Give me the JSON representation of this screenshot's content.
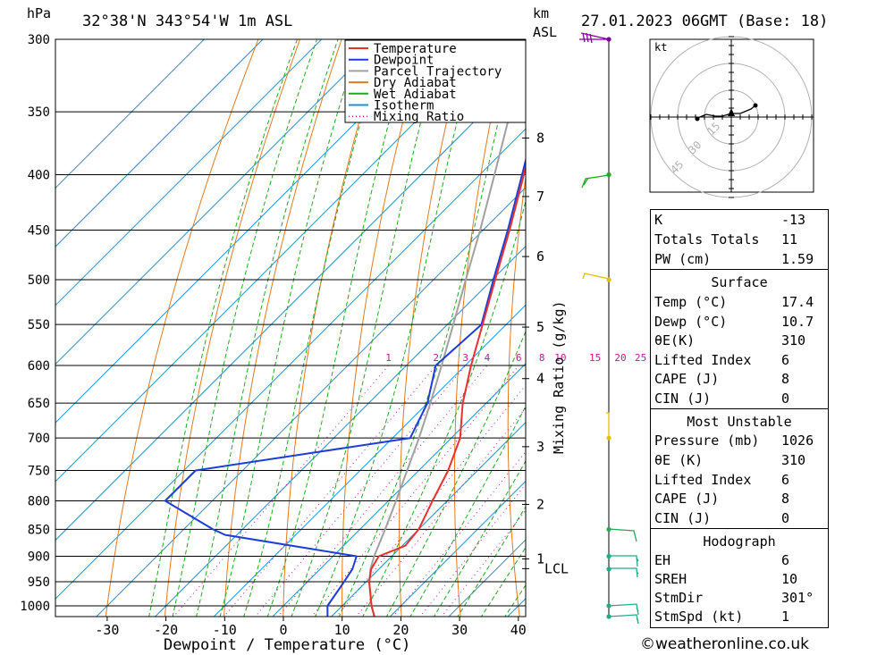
{
  "header": {
    "hpa_unit": "hPa",
    "location": "32°38'N  343°54'W  1m  ASL",
    "km_unit": "km",
    "asl_unit": "ASL",
    "datetime": "27.01.2023  06GMT  (Base: 18)"
  },
  "chart_data": {
    "type": "line",
    "title": "32°38'N  343°54'W  1m  ASL",
    "xlabel": "Dewpoint / Temperature (°C)",
    "ylabel": "hPa",
    "y2label": "Mixing Ratio (g/kg)",
    "xlim": [
      -40,
      40
    ],
    "ylim": [
      1025,
      300
    ],
    "y_scale": "log",
    "skew": "skew-T",
    "grid": true,
    "legend_position": "top-right",
    "x_ticks": [
      -30,
      -20,
      -10,
      0,
      10,
      20,
      30,
      40
    ],
    "pressure_levels": [
      300,
      350,
      400,
      450,
      500,
      550,
      600,
      650,
      700,
      750,
      800,
      850,
      900,
      950,
      1000
    ],
    "km_ticks": [
      {
        "label": "8",
        "p": 370
      },
      {
        "label": "7",
        "p": 419
      },
      {
        "label": "6",
        "p": 476
      },
      {
        "label": "5",
        "p": 553
      },
      {
        "label": "4",
        "p": 617
      },
      {
        "label": "3",
        "p": 713
      },
      {
        "label": "2",
        "p": 806
      },
      {
        "label": "1",
        "p": 905
      },
      {
        "label": "LCL",
        "p": 924
      }
    ],
    "mixing_ratio_labels": [
      "1",
      "2",
      "3",
      "4",
      "6",
      "8",
      "10",
      "15",
      "20",
      "25"
    ],
    "mixing_ratio_values": [
      1,
      2,
      3,
      4,
      6,
      8,
      10,
      15,
      20,
      25
    ],
    "series": [
      {
        "name": "Temperature",
        "color": "#e8302d",
        "points": [
          [
            1025,
            17.5
          ],
          [
            1000,
            15.0
          ],
          [
            950,
            10.5
          ],
          [
            925,
            8.7
          ],
          [
            900,
            7.8
          ],
          [
            880,
            10.5
          ],
          [
            850,
            10.0
          ],
          [
            800,
            7.5
          ],
          [
            750,
            5.0
          ],
          [
            700,
            1.5
          ],
          [
            650,
            -4.0
          ],
          [
            600,
            -9.0
          ],
          [
            550,
            -14.0
          ],
          [
            500,
            -19.5
          ],
          [
            450,
            -25.5
          ],
          [
            400,
            -32.5
          ],
          [
            350,
            -40.5
          ],
          [
            300,
            -49.5
          ]
        ]
      },
      {
        "name": "Dewpoint",
        "color": "#1c3dd8",
        "points": [
          [
            1025,
            9.5
          ],
          [
            1000,
            7.5
          ],
          [
            960,
            6.5
          ],
          [
            925,
            5.5
          ],
          [
            900,
            4.0
          ],
          [
            860,
            -22.0
          ],
          [
            850,
            -25.0
          ],
          [
            800,
            -38.0
          ],
          [
            750,
            -38.0
          ],
          [
            700,
            -7.0
          ],
          [
            650,
            -10.0
          ],
          [
            600,
            -15.0
          ],
          [
            550,
            -14.2
          ],
          [
            500,
            -19.8
          ],
          [
            450,
            -25.8
          ],
          [
            400,
            -32.8
          ],
          [
            350,
            -40.8
          ],
          [
            300,
            -50.0
          ]
        ]
      },
      {
        "name": "Parcel Trajectory",
        "color": "#a0a0a0",
        "points": [
          [
            1025,
            17.5
          ],
          [
            1000,
            15.0
          ],
          [
            950,
            10.5
          ],
          [
            924,
            8.5
          ],
          [
            900,
            7.0
          ],
          [
            850,
            4.3
          ],
          [
            800,
            1.3
          ],
          [
            750,
            -2.0
          ],
          [
            700,
            -5.5
          ],
          [
            650,
            -9.5
          ],
          [
            600,
            -14.0
          ],
          [
            550,
            -19.0
          ],
          [
            500,
            -24.5
          ],
          [
            450,
            -30.5
          ],
          [
            400,
            -37.5
          ],
          [
            350,
            -45.5
          ],
          [
            320,
            -51.0
          ]
        ]
      }
    ],
    "legend": [
      {
        "name": "Temperature",
        "color": "#e8302d",
        "style": "solid"
      },
      {
        "name": "Dewpoint",
        "color": "#1c3dd8",
        "style": "solid"
      },
      {
        "name": "Parcel Trajectory",
        "color": "#a0a0a0",
        "style": "solid"
      },
      {
        "name": "Dry Adiabat",
        "color": "#e07a1e",
        "style": "solid"
      },
      {
        "name": "Wet Adiabat",
        "color": "#1faa1f",
        "style": "solid"
      },
      {
        "name": "Isotherm",
        "color": "#1e90d8",
        "style": "solid"
      },
      {
        "name": "Mixing Ratio",
        "color": "#c0189a",
        "style": "dotted"
      }
    ],
    "wind_barbs": [
      {
        "p": 300,
        "color": "#8000a0"
      },
      {
        "p": 400,
        "color": "#22aa22"
      },
      {
        "p": 500,
        "color": "#e0c000"
      },
      {
        "p": 700,
        "color": "#e0c000"
      },
      {
        "p": 850,
        "color": "#22aa55"
      },
      {
        "p": 900,
        "color": "#22aa88"
      },
      {
        "p": 925,
        "color": "#22aa88"
      },
      {
        "p": 1000,
        "color": "#22aa88"
      },
      {
        "p": 1025,
        "color": "#22aa88"
      }
    ]
  },
  "hodograph": {
    "unit": "kt",
    "ring_labels": [
      "15",
      "30",
      "45"
    ]
  },
  "indices": [
    {
      "key": "K",
      "value": "-13"
    },
    {
      "key": "Totals Totals",
      "value": "11"
    },
    {
      "key": "PW (cm)",
      "value": "1.59"
    }
  ],
  "surface": {
    "title": "Surface",
    "rows": [
      {
        "key": "Temp (°C)",
        "value": "17.4"
      },
      {
        "key": "Dewp (°C)",
        "value": "10.7"
      },
      {
        "key": "θE(K)",
        "value": "310"
      },
      {
        "key": "Lifted Index",
        "value": "6"
      },
      {
        "key": "CAPE (J)",
        "value": "8"
      },
      {
        "key": "CIN (J)",
        "value": "0"
      }
    ]
  },
  "most_unstable": {
    "title": "Most Unstable",
    "rows": [
      {
        "key": "Pressure (mb)",
        "value": "1026"
      },
      {
        "key": "θE (K)",
        "value": "310"
      },
      {
        "key": "Lifted Index",
        "value": "6"
      },
      {
        "key": "CAPE (J)",
        "value": "8"
      },
      {
        "key": "CIN (J)",
        "value": "0"
      }
    ]
  },
  "hodograph_table": {
    "title": "Hodograph",
    "rows": [
      {
        "key": "EH",
        "value": "6"
      },
      {
        "key": "SREH",
        "value": "10"
      },
      {
        "key": "StmDir",
        "value": "301°"
      },
      {
        "key": "StmSpd (kt)",
        "value": "1"
      }
    ]
  },
  "credit": "©weatheronline.co.uk"
}
